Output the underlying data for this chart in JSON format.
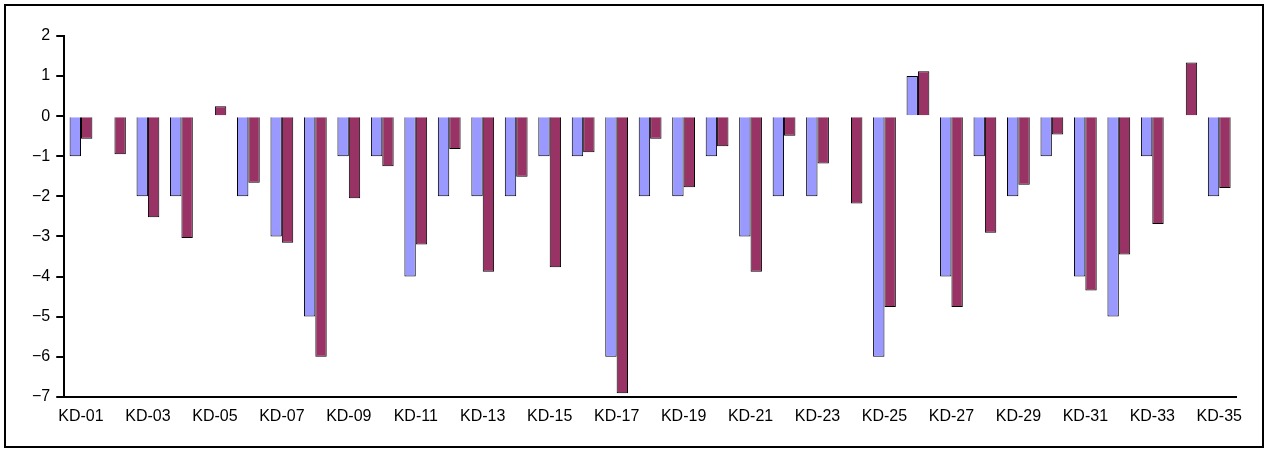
{
  "chart_data": {
    "type": "bar",
    "categories": [
      "KD-01",
      null,
      "KD-03",
      null,
      "KD-05",
      null,
      "KD-07",
      null,
      "KD-09",
      null,
      "KD-11",
      null,
      "KD-13",
      null,
      "KD-15",
      null,
      "KD-17",
      null,
      "KD-19",
      null,
      "KD-21",
      null,
      "KD-23",
      null,
      "KD-25",
      null,
      "KD-27",
      null,
      "KD-29",
      null,
      "KD-31",
      null,
      "KD-33",
      null,
      "KD-35"
    ],
    "series": [
      {
        "color": "#9999ff",
        "values": [
          -1,
          0,
          -2,
          -2,
          0,
          -2,
          -3,
          -5,
          -1,
          -1,
          -4,
          -2,
          -2,
          -2,
          -1,
          -1,
          -6,
          -2,
          -2,
          -1,
          -3,
          -2,
          -2,
          0,
          -6,
          1,
          -4,
          -1,
          -2,
          -1,
          -4,
          -5,
          -1,
          0,
          -2
        ]
      },
      {
        "color": "#993366",
        "values": [
          -0.56,
          -0.95,
          -2.52,
          -3.04,
          0.25,
          -1.66,
          -3.16,
          -6,
          -2.05,
          -1.25,
          -3.2,
          -0.82,
          -3.88,
          -1.51,
          -3.77,
          -0.9,
          -6.91,
          -0.56,
          -1.77,
          -0.75,
          -3.88,
          -0.49,
          -1.18,
          -2.18,
          -4.76,
          1.12,
          -4.76,
          -2.91,
          -1.71,
          -0.46,
          -4.35,
          -3.45,
          -2.69,
          1.34,
          -1.79
        ]
      }
    ],
    "ylim": [
      -7,
      2
    ],
    "yticks": [
      -7,
      -6,
      -5,
      -4,
      -3,
      -2,
      -1,
      0,
      1,
      2
    ],
    "grid": false,
    "legend": false
  }
}
